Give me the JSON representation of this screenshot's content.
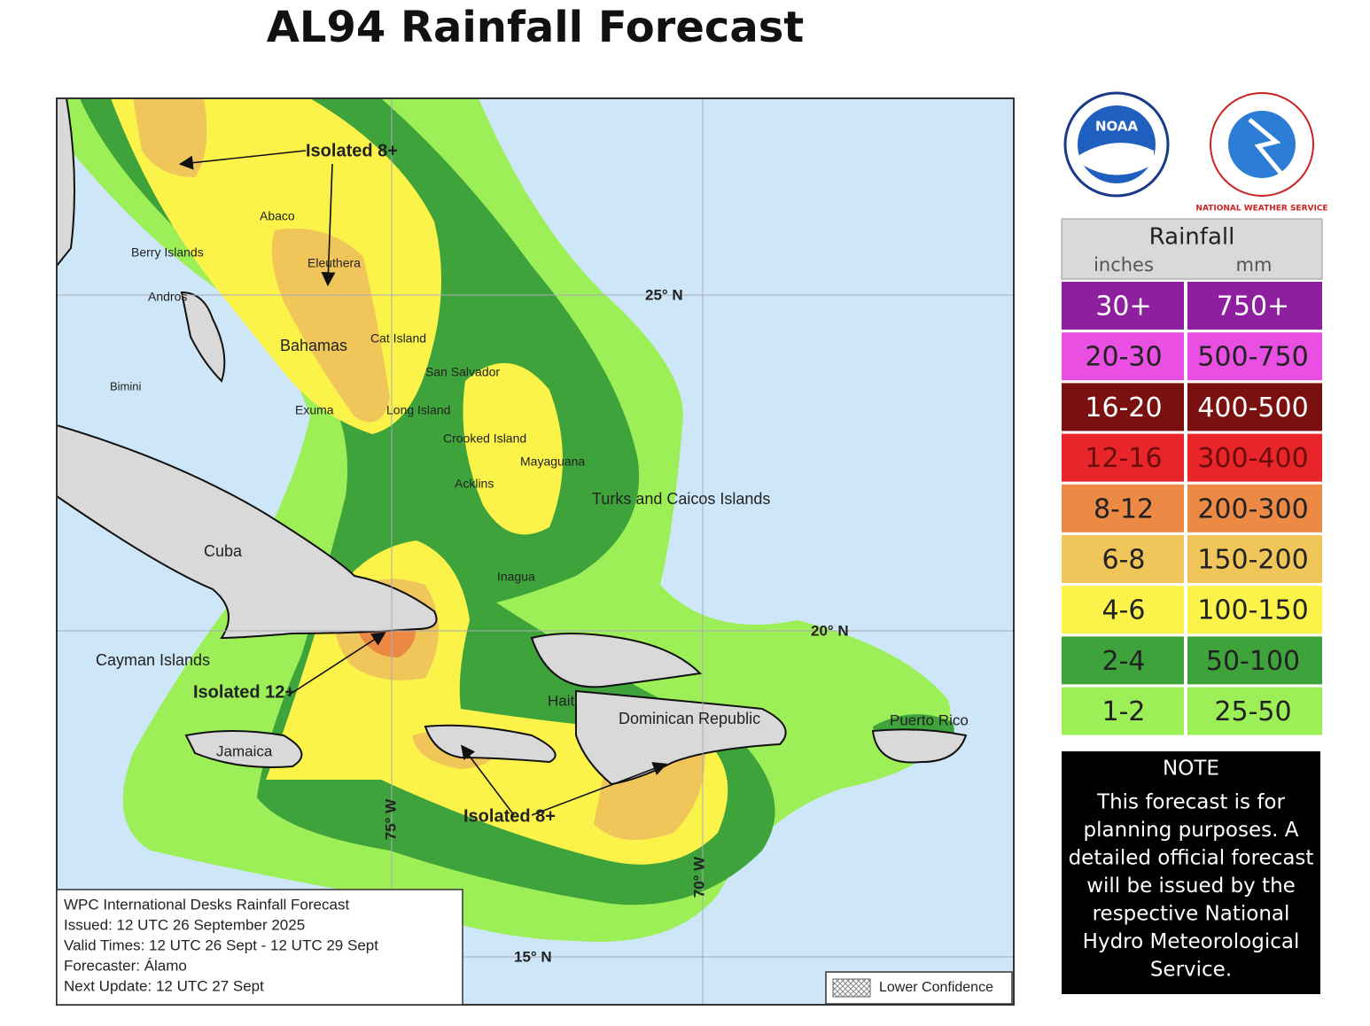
{
  "title": "AL94 Rainfall Forecast",
  "logos": [
    "NOAA",
    "NATIONAL WEATHER SERVICE"
  ],
  "map": {
    "places": [
      "Abaco",
      "Berry Islands",
      "Eleuthera",
      "Andros",
      "Bahamas",
      "Cat Island",
      "San Salvador",
      "Bimini",
      "Exuma",
      "Long Island",
      "Crooked Island",
      "Mayaguana",
      "Acklins",
      "Turks and Caicos Islands",
      "Cuba",
      "Inagua",
      "Cayman Islands",
      "Haiti",
      "Dominican Republic",
      "Puerto Rico",
      "Jamaica"
    ],
    "grid_labels": [
      "25° N",
      "20° N",
      "15° N",
      "75° W",
      "70° W"
    ],
    "annotations": [
      "Isolated 8+",
      "Isolated 12+",
      "Isolated 8+"
    ],
    "info": [
      "WPC International Desks Rainfall Forecast",
      "Issued: 12 UTC 26 September 2025",
      "Valid Times: 12 UTC 26 Sept - 12 UTC 29 Sept",
      "Forecaster: Álamo",
      "Next Update: 12 UTC 27 Sept"
    ],
    "lower_confidence": "Lower Confidence"
  },
  "legend": {
    "title": "Rainfall",
    "units": [
      "inches",
      "mm"
    ],
    "rows": [
      {
        "inches": "30+",
        "mm": "750+",
        "color": "#8e1f9e",
        "text_color": "#ffffff"
      },
      {
        "inches": "20-30",
        "mm": "500-750",
        "color": "#e94fe2",
        "text_color": "#222222"
      },
      {
        "inches": "16-20",
        "mm": "400-500",
        "color": "#7a1010",
        "text_color": "#ffffff"
      },
      {
        "inches": "12-16",
        "mm": "300-400",
        "color": "#e8262a",
        "text_color": "#6a0c0c"
      },
      {
        "inches": "8-12",
        "mm": "200-300",
        "color": "#ec8a45",
        "text_color": "#222222"
      },
      {
        "inches": "6-8",
        "mm": "150-200",
        "color": "#f0c55a",
        "text_color": "#222222"
      },
      {
        "inches": "4-6",
        "mm": "100-150",
        "color": "#fbf34a",
        "text_color": "#222222"
      },
      {
        "inches": "2-4",
        "mm": "50-100",
        "color": "#3ea33a",
        "text_color": "#222222"
      },
      {
        "inches": "1-2",
        "mm": "25-50",
        "color": "#9cef56",
        "text_color": "#222222"
      }
    ]
  },
  "note": {
    "title": "NOTE",
    "lines": [
      "This forecast is for",
      "planning purposes. A",
      "detailed official forecast",
      "will be issued by the",
      "respective National",
      "Hydro Meteorological",
      "Service."
    ]
  }
}
